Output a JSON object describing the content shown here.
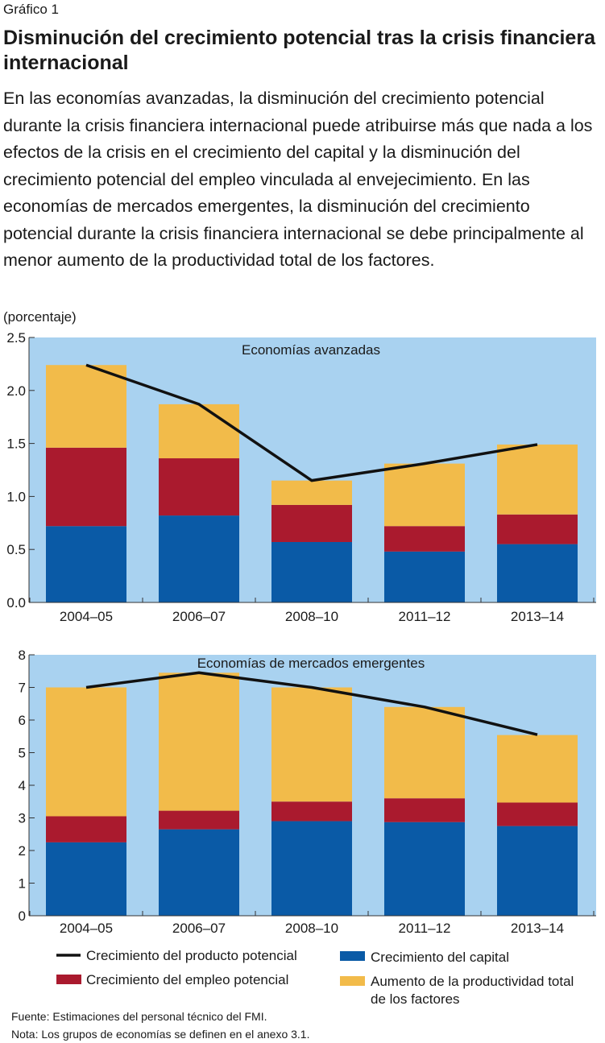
{
  "figure_label": "Gráfico 1",
  "title": "Disminución del crecimiento potencial tras la crisis financiera internacional",
  "subtitle": "En las economías avanzadas, la disminución del crecimiento potencial durante la crisis financiera internacional puede atribuirse más que nada a los efectos de la crisis en el crecimiento del capital y la disminución del crecimiento potencial del empleo vinculada al envejecimiento. En las economías de mercados emergentes, la disminución del crecimiento potencial durante la crisis financiera internacional se debe principalmente al menor aumento de la productividad total de los factores.",
  "unit_label": "(porcentaje)",
  "colors": {
    "background": "#a9d2f0",
    "capital": "#0a5aa6",
    "employment": "#aa1a2e",
    "tfp": "#f2bb4a",
    "line": "#111111"
  },
  "chart_data": [
    {
      "type": "bar",
      "stacked": true,
      "title": "Economías avanzadas",
      "categories": [
        "2004–05",
        "2006–07",
        "2008–10",
        "2011–12",
        "2013–14"
      ],
      "ylim": [
        0,
        2.5
      ],
      "yticks": [
        "0.0",
        "0.5",
        "1.0",
        "1.5",
        "2.0",
        "2.5"
      ],
      "grid": false,
      "series": [
        {
          "name": "Crecimiento del capital",
          "key": "capital",
          "values": [
            0.72,
            0.82,
            0.57,
            0.48,
            0.55
          ]
        },
        {
          "name": "Crecimiento del empleo potencial",
          "key": "employment",
          "values": [
            0.74,
            0.54,
            0.35,
            0.24,
            0.28
          ]
        },
        {
          "name": "Aumento de la productividad total de los factores",
          "key": "tfp",
          "values": [
            0.78,
            0.51,
            0.23,
            0.59,
            0.66
          ]
        }
      ],
      "line": {
        "name": "Crecimiento del producto potencial",
        "values": [
          2.24,
          1.87,
          1.15,
          1.31,
          1.49
        ]
      }
    },
    {
      "type": "bar",
      "stacked": true,
      "title": "Economías de mercados emergentes",
      "categories": [
        "2004–05",
        "2006–07",
        "2008–10",
        "2011–12",
        "2013–14"
      ],
      "ylim": [
        0,
        8
      ],
      "yticks": [
        "0",
        "1",
        "2",
        "3",
        "4",
        "5",
        "6",
        "7",
        "8"
      ],
      "grid": false,
      "series": [
        {
          "name": "Crecimiento del capital",
          "key": "capital",
          "values": [
            2.25,
            2.65,
            2.9,
            2.87,
            2.75
          ]
        },
        {
          "name": "Crecimiento del empleo potencial",
          "key": "employment",
          "values": [
            0.8,
            0.57,
            0.6,
            0.73,
            0.72
          ]
        },
        {
          "name": "Aumento de la productividad total de los factores",
          "key": "tfp",
          "values": [
            3.95,
            4.23,
            3.5,
            2.8,
            2.07
          ]
        }
      ],
      "line": {
        "name": "Crecimiento del producto potencial",
        "values": [
          7.0,
          7.45,
          7.0,
          6.4,
          5.55
        ]
      }
    }
  ],
  "legend": [
    {
      "key": "line",
      "label": "Crecimiento del producto potencial"
    },
    {
      "key": "capital",
      "label": "Crecimiento del capital"
    },
    {
      "key": "employment",
      "label": "Crecimiento del empleo potencial"
    },
    {
      "key": "tfp",
      "label_line1": "Aumento de la productividad total",
      "label_line2": "de los factores"
    }
  ],
  "source": "Fuente: Estimaciones del personal técnico del FMI.",
  "note": "Nota: Los grupos de economías se definen en el anexo 3.1."
}
